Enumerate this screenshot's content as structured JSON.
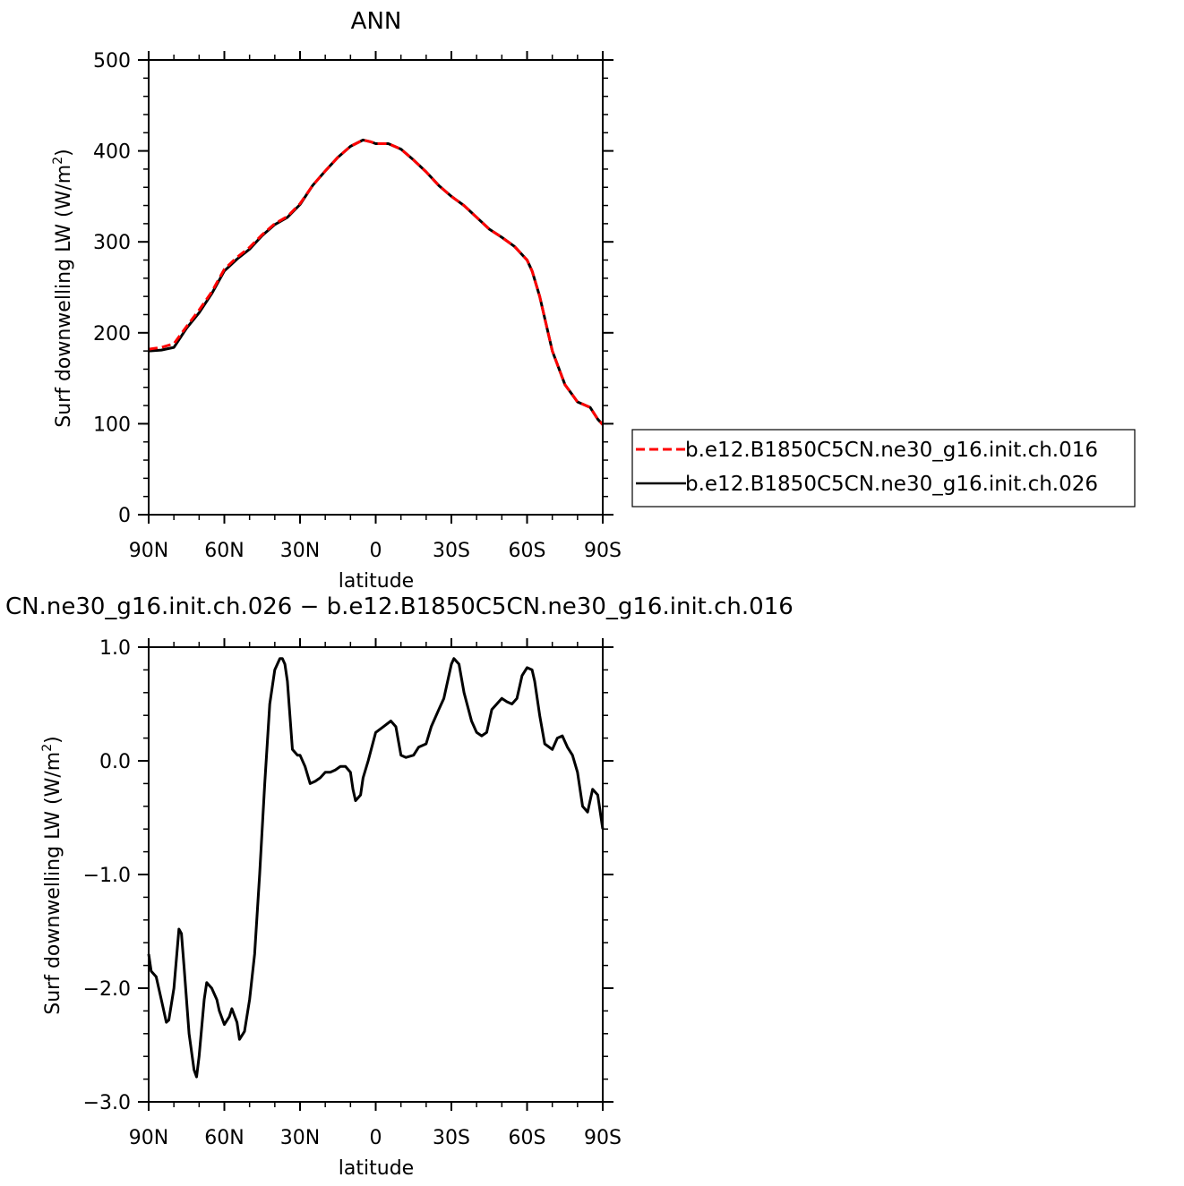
{
  "chart_data": [
    {
      "type": "line",
      "title": "ANN",
      "xlabel": "latitude",
      "ylabel": "Surf  downwelling LW (W/m",
      "ylabel_sup": "2",
      "ylabel_close": ")",
      "xlim": [
        90,
        -90
      ],
      "ylim": [
        0,
        500
      ],
      "x_ticks": [
        90,
        60,
        30,
        0,
        -30,
        -60,
        -90
      ],
      "x_tick_labels": [
        "90N",
        "60N",
        "30N",
        "0",
        "30S",
        "60S",
        "90S"
      ],
      "y_ticks": [
        0,
        100,
        200,
        300,
        400,
        500
      ],
      "y_tick_labels": [
        "0",
        "100",
        "200",
        "300",
        "400",
        "500"
      ],
      "legend_position": "right",
      "grid": false,
      "x": [
        90,
        85,
        80,
        75,
        70,
        65,
        60,
        55,
        50,
        45,
        40,
        35,
        30,
        25,
        20,
        15,
        10,
        5,
        2,
        0,
        -5,
        -10,
        -15,
        -20,
        -25,
        -30,
        -35,
        -40,
        -45,
        -50,
        -55,
        -60,
        -62,
        -65,
        -70,
        -75,
        -80,
        -85,
        -88,
        -90
      ],
      "series": [
        {
          "name": "b.e12.B1850C5CN.ne30_g16.init.ch.016",
          "color": "#ff0000",
          "dash": true,
          "values": [
            182,
            184,
            188,
            207,
            225,
            245,
            270,
            283,
            294,
            308,
            320,
            328,
            342,
            362,
            378,
            393,
            405,
            412,
            410,
            408,
            408,
            402,
            390,
            377,
            362,
            350,
            340,
            327,
            314,
            305,
            295,
            280,
            268,
            240,
            180,
            143,
            124,
            118,
            105,
            99
          ]
        },
        {
          "name": "b.e12.B1850C5CN.ne30_g16.init.ch.026",
          "color": "#000000",
          "dash": false,
          "values": [
            180,
            181,
            184,
            205,
            222,
            243,
            268,
            281,
            292,
            307,
            319,
            327,
            341,
            362,
            378,
            393,
            405,
            412,
            410,
            408,
            408,
            402,
            390,
            377,
            362,
            350,
            340,
            327,
            314,
            305,
            295,
            280,
            268,
            240,
            180,
            143,
            124,
            118,
            105,
            99
          ]
        }
      ]
    },
    {
      "type": "line",
      "title": "CN.ne30_g16.init.ch.026  −  b.e12.B1850C5CN.ne30_g16.init.ch.016",
      "xlabel": "latitude",
      "ylabel": "Surf  downwelling LW (W/m",
      "ylabel_sup": "2",
      "ylabel_close": ")",
      "xlim": [
        90,
        -90
      ],
      "ylim": [
        -3.0,
        1.0
      ],
      "x_ticks": [
        90,
        60,
        30,
        0,
        -30,
        -60,
        -90
      ],
      "x_tick_labels": [
        "90N",
        "60N",
        "30N",
        "0",
        "30S",
        "60S",
        "90S"
      ],
      "y_ticks": [
        -3.0,
        -2.0,
        -1.0,
        0.0,
        1.0
      ],
      "y_tick_labels": [
        "−3.0",
        "−2.0",
        "−1.0",
        "0.0",
        "1.0"
      ],
      "grid": false,
      "x": [
        90,
        89,
        87,
        85,
        83,
        82,
        80,
        78,
        77,
        76,
        74,
        72,
        71,
        70,
        68,
        67,
        65,
        63,
        62,
        60,
        58,
        57,
        55,
        54,
        52,
        50,
        48,
        46,
        44,
        42,
        40,
        38,
        37,
        36,
        35,
        34,
        33,
        31,
        30,
        28,
        26,
        24,
        22,
        20,
        18,
        16,
        14,
        12,
        10,
        9,
        8,
        6,
        5,
        3,
        0,
        -3,
        -6,
        -8,
        -10,
        -12,
        -15,
        -17,
        -20,
        -22,
        -25,
        -27,
        -30,
        -31,
        -33,
        -35,
        -38,
        -40,
        -42,
        -44,
        -46,
        -48,
        -50,
        -52,
        -54,
        -56,
        -58,
        -60,
        -62,
        -63,
        -65,
        -67,
        -70,
        -72,
        -74,
        -76,
        -78,
        -80,
        -82,
        -84,
        -86,
        -88,
        -90
      ],
      "series": [
        {
          "name": "",
          "color": "#000000",
          "values": [
            -1.7,
            -1.85,
            -1.9,
            -2.1,
            -2.3,
            -2.28,
            -2.0,
            -1.48,
            -1.52,
            -1.8,
            -2.4,
            -2.72,
            -2.78,
            -2.6,
            -2.1,
            -1.95,
            -2.0,
            -2.1,
            -2.2,
            -2.32,
            -2.25,
            -2.18,
            -2.3,
            -2.45,
            -2.38,
            -2.1,
            -1.7,
            -1.0,
            -0.2,
            0.5,
            0.8,
            0.9,
            0.9,
            0.85,
            0.7,
            0.4,
            0.1,
            0.05,
            0.05,
            -0.05,
            -0.2,
            -0.18,
            -0.15,
            -0.1,
            -0.1,
            -0.08,
            -0.05,
            -0.05,
            -0.1,
            -0.25,
            -0.35,
            -0.3,
            -0.15,
            0.0,
            0.25,
            0.3,
            0.35,
            0.3,
            0.05,
            0.03,
            0.05,
            0.12,
            0.15,
            0.3,
            0.45,
            0.55,
            0.85,
            0.9,
            0.85,
            0.6,
            0.35,
            0.25,
            0.22,
            0.25,
            0.45,
            0.5,
            0.55,
            0.52,
            0.5,
            0.55,
            0.75,
            0.82,
            0.8,
            0.7,
            0.4,
            0.15,
            0.1,
            0.2,
            0.22,
            0.12,
            0.05,
            -0.1,
            -0.4,
            -0.45,
            -0.25,
            -0.3,
            -0.6
          ]
        }
      ]
    }
  ]
}
